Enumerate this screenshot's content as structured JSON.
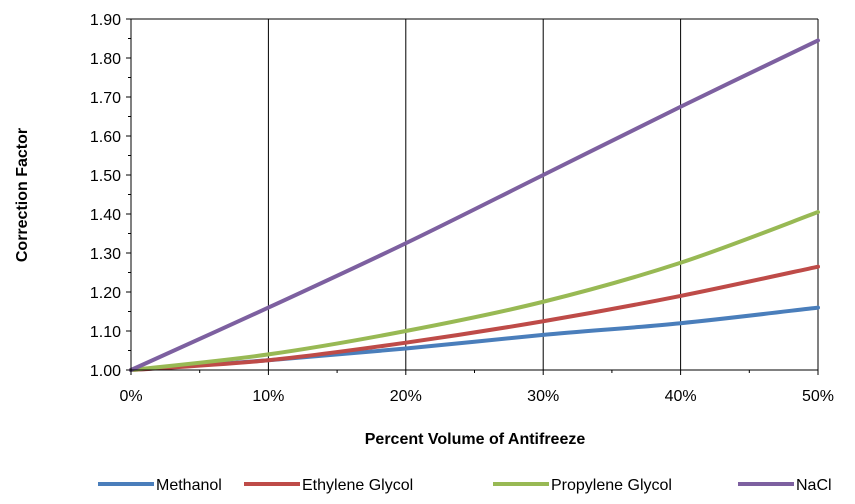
{
  "chart_data": {
    "type": "line",
    "title": "",
    "xlabel": "Percent Volume of Antifreeze",
    "ylabel": "Correction Factor",
    "x": [
      0,
      10,
      20,
      30,
      40,
      50
    ],
    "x_tick_labels": [
      "0%",
      "10%",
      "20%",
      "30%",
      "40%",
      "50%"
    ],
    "y_ticks": [
      1.0,
      1.1,
      1.2,
      1.3,
      1.4,
      1.5,
      1.6,
      1.7,
      1.8,
      1.9
    ],
    "y_tick_labels": [
      "1.00",
      "1.10",
      "1.20",
      "1.30",
      "1.40",
      "1.50",
      "1.60",
      "1.70",
      "1.80",
      "1.90"
    ],
    "xlim": [
      0,
      50
    ],
    "ylim": [
      1.0,
      1.9
    ],
    "grid": "vertical",
    "legend_position": "bottom",
    "series": [
      {
        "name": "Methanol",
        "color": "#4a7ebb",
        "values": [
          1.0,
          1.025,
          1.055,
          1.09,
          1.12,
          1.16
        ]
      },
      {
        "name": "Ethylene Glycol",
        "color": "#be4b48",
        "values": [
          1.0,
          1.025,
          1.07,
          1.125,
          1.19,
          1.265
        ]
      },
      {
        "name": "Propylene Glycol",
        "color": "#98b954",
        "values": [
          1.0,
          1.04,
          1.1,
          1.175,
          1.275,
          1.405
        ]
      },
      {
        "name": "NaCl",
        "color": "#7d60a0",
        "values": [
          1.0,
          1.16,
          1.325,
          1.5,
          1.675,
          1.845
        ]
      }
    ]
  }
}
